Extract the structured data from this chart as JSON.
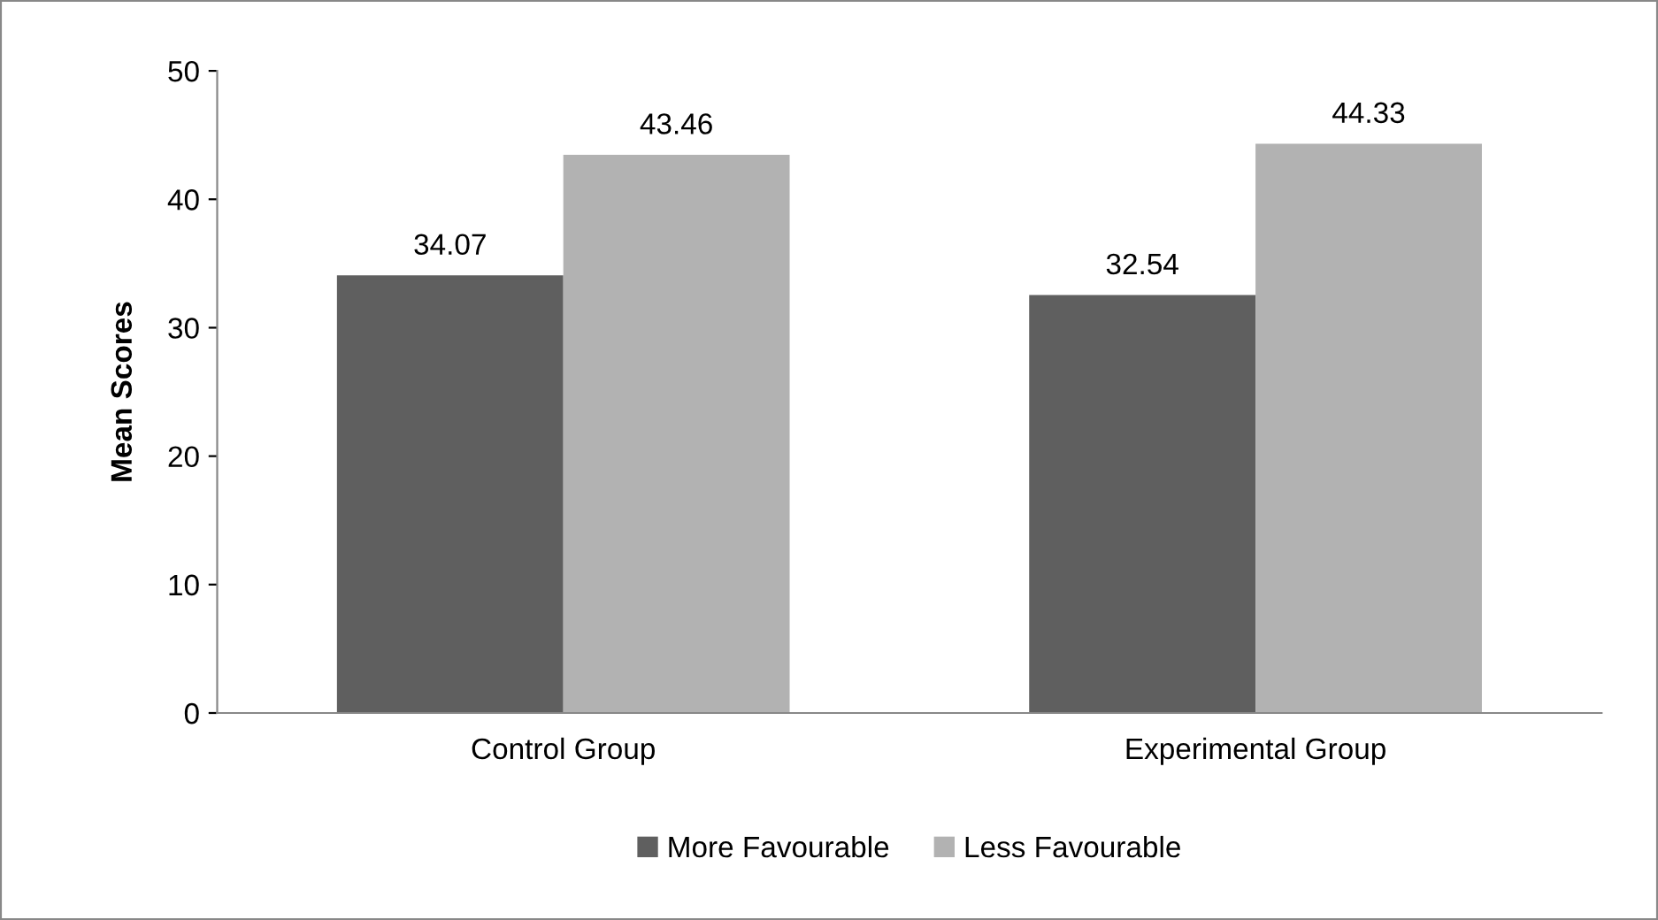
{
  "chart_data": {
    "type": "bar",
    "ylabel": "Mean Scores",
    "categories": [
      "Control Group",
      "Experimental Group"
    ],
    "series": [
      {
        "name": "More Favourable",
        "color": "#5f5f5f",
        "values": [
          34.07,
          32.54
        ]
      },
      {
        "name": "Less Favourable",
        "color": "#b2b2b2",
        "values": [
          43.46,
          44.33
        ]
      }
    ],
    "ylim": [
      0,
      50
    ],
    "yticks": [
      0,
      10,
      20,
      30,
      40,
      50
    ],
    "grid": false,
    "legend": "bottom",
    "data_labels": true
  }
}
